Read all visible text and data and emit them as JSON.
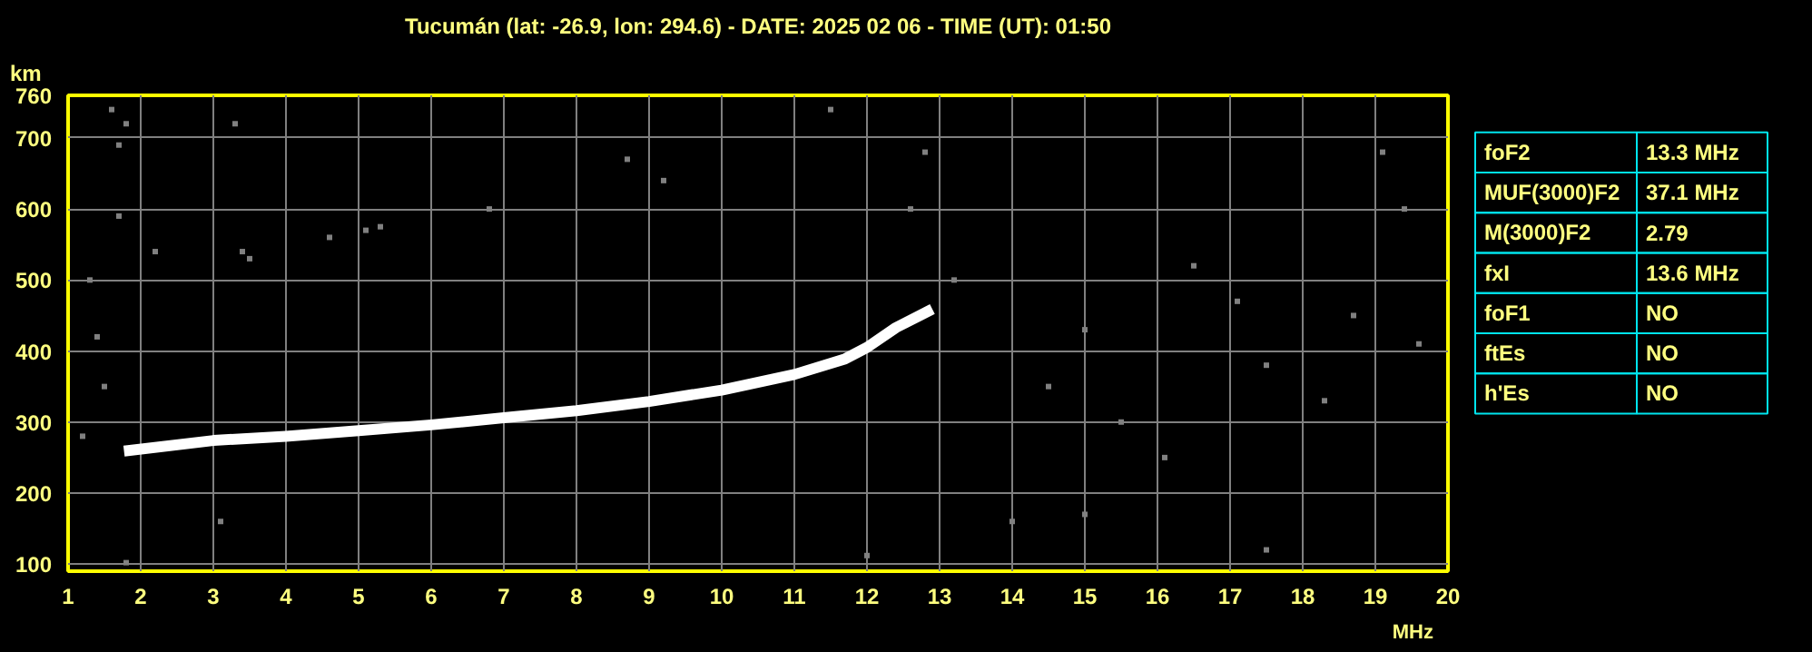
{
  "chart_data": [
    {
      "type": "scatter",
      "title": "Tucumán (lat: -26.9, lon: 294.6) - DATE: 2025 02 06 - TIME (UT): 01:50",
      "xlabel": "MHz",
      "ylabel": "km",
      "xlim": [
        1,
        20
      ],
      "ylim": [
        90,
        760
      ],
      "xticks": [
        1,
        2,
        3,
        4,
        5,
        6,
        7,
        8,
        9,
        10,
        11,
        12,
        13,
        14,
        15,
        16,
        17,
        18,
        19,
        20
      ],
      "yticks": [
        100,
        200,
        300,
        400,
        500,
        600,
        700,
        760
      ],
      "grid": true,
      "series": [
        {
          "type": "line",
          "color": "#ffffff",
          "x": [
            1.77,
            3,
            4,
            5,
            6,
            7,
            8,
            9,
            10,
            11,
            11.7,
            12,
            12.4,
            12.9
          ],
          "values": [
            259,
            274,
            280,
            288,
            296,
            306,
            316,
            329,
            345,
            367,
            389,
            405,
            433,
            459
          ]
        },
        {
          "type": "scatter",
          "marker": "square",
          "color": "#808080",
          "x": [
            1.6,
            1.7,
            1.8,
            1.7,
            1.3,
            1.4,
            1.5,
            1.2,
            2.2,
            3.3,
            3.4,
            3.5,
            4.6,
            5.1,
            5.3,
            6.8,
            8.7,
            9.2,
            11.5,
            12.8,
            12.6,
            13.2,
            14.5,
            15.0,
            15.5,
            16.1,
            16.5,
            17.1,
            17.5,
            18.3,
            18.7,
            19.1,
            19.4,
            19.6,
            14,
            15,
            17.5,
            12,
            1.8,
            3.1
          ],
          "values": [
            740,
            690,
            720,
            590,
            500,
            420,
            350,
            280,
            540,
            720,
            540,
            530,
            560,
            570,
            575,
            600,
            670,
            640,
            740,
            680,
            600,
            500,
            350,
            430,
            300,
            250,
            520,
            470,
            380,
            330,
            450,
            680,
            600,
            410,
            160,
            170,
            120,
            112,
            102,
            160
          ]
        }
      ]
    },
    {
      "type": "other",
      "categories": [
        "foF2",
        "MUF(3000)F2",
        "M(3000)F2",
        "fxI",
        "foF1",
        "ftEs",
        "h'Es"
      ],
      "value_labels": [
        "13.3 MHz",
        "37.1 MHz",
        "2.79",
        "13.6 MHz",
        "NO",
        "NO",
        "NO"
      ]
    }
  ]
}
